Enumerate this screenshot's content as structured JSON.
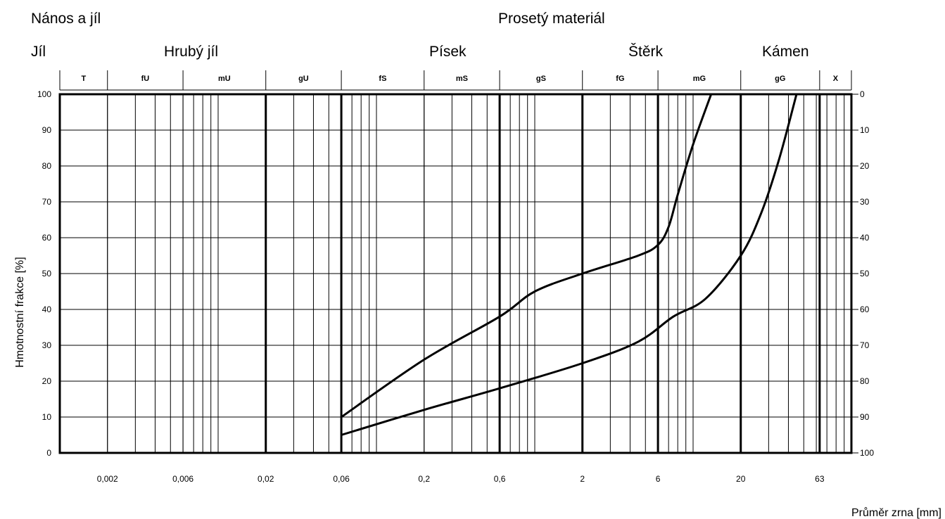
{
  "header": {
    "left_title": "Nános a jíl",
    "right_title": "Prosetý materiál"
  },
  "groups": [
    {
      "label": "Jíl"
    },
    {
      "label": "Hrubý jíl"
    },
    {
      "label": "Písek"
    },
    {
      "label": "Štěrk"
    },
    {
      "label": "Kámen"
    }
  ],
  "zones": [
    {
      "code": "T",
      "from": 0.001,
      "to": 0.002
    },
    {
      "code": "fU",
      "from": 0.002,
      "to": 0.006
    },
    {
      "code": "mU",
      "from": 0.006,
      "to": 0.02
    },
    {
      "code": "gU",
      "from": 0.02,
      "to": 0.06
    },
    {
      "code": "fS",
      "from": 0.06,
      "to": 0.2
    },
    {
      "code": "mS",
      "from": 0.2,
      "to": 0.6
    },
    {
      "code": "gS",
      "from": 0.6,
      "to": 2
    },
    {
      "code": "fG",
      "from": 2,
      "to": 6
    },
    {
      "code": "mG",
      "from": 6,
      "to": 20
    },
    {
      "code": "gG",
      "from": 20,
      "to": 63
    },
    {
      "code": "X",
      "from": 63,
      "to": 100
    }
  ],
  "chart_data": {
    "type": "line",
    "xscale": "log",
    "xlim": [
      0.001,
      100
    ],
    "ylim": [
      0,
      100
    ],
    "ylabel": "Hmotnostní frakce [%]",
    "xlabel": "Průměr zrna [mm]",
    "x_tick_labels": [
      "0,002",
      "0,006",
      "0,02",
      "0,06",
      "0,2",
      "0,6",
      "2",
      "6",
      "20",
      "63"
    ],
    "y_tick_labels_left": [
      "0",
      "10",
      "20",
      "30",
      "40",
      "50",
      "60",
      "70",
      "80",
      "90",
      "100"
    ],
    "y_tick_labels_right": [
      "100",
      "90",
      "80",
      "70",
      "60",
      "50",
      "40",
      "30",
      "20",
      "10",
      "0"
    ],
    "grid": true,
    "series": [
      {
        "points": [
          [
            0.06,
            10
          ],
          [
            0.2,
            26
          ],
          [
            0.6,
            38
          ],
          [
            1.0,
            45
          ],
          [
            2,
            50
          ],
          [
            4.5,
            55
          ],
          [
            6,
            58
          ],
          [
            7,
            63
          ],
          [
            8,
            72
          ],
          [
            10,
            86
          ],
          [
            13,
            100
          ]
        ]
      },
      {
        "points": [
          [
            0.06,
            5
          ],
          [
            0.2,
            12
          ],
          [
            0.6,
            18
          ],
          [
            2,
            25
          ],
          [
            4.5,
            31
          ],
          [
            7.5,
            38
          ],
          [
            12,
            43
          ],
          [
            20,
            55
          ],
          [
            27,
            67
          ],
          [
            35,
            82
          ],
          [
            45,
            100
          ]
        ]
      }
    ]
  }
}
